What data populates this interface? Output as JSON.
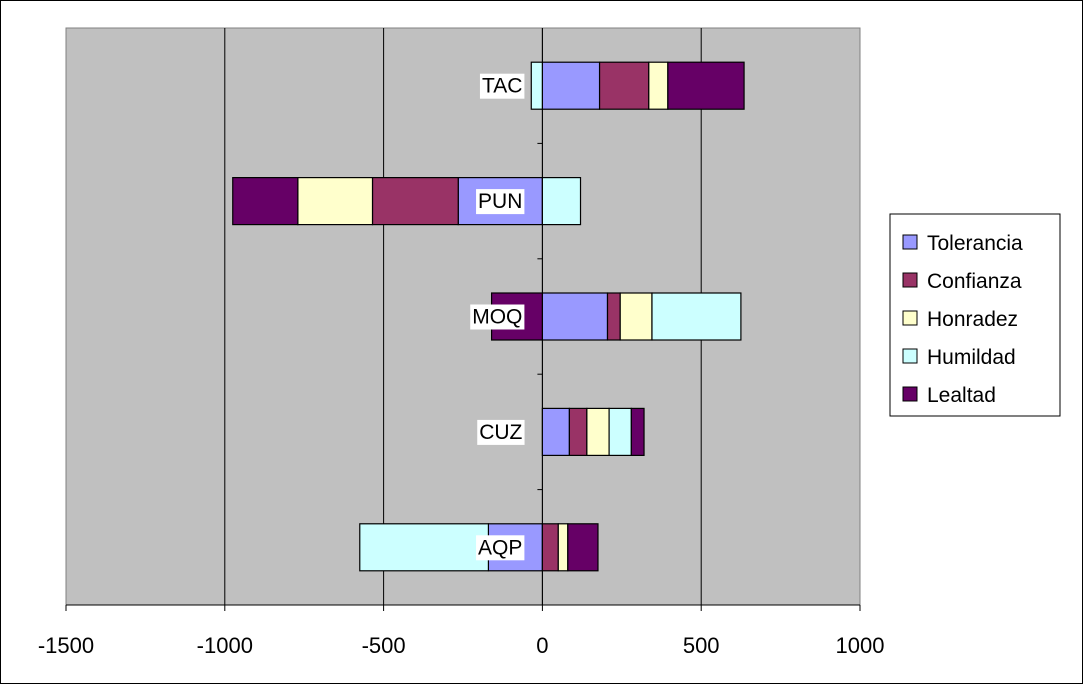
{
  "chart_data": {
    "type": "bar",
    "orientation": "horizontal",
    "stacked": true,
    "categories": [
      "AQP",
      "CUZ",
      "MOQ",
      "PUN",
      "TAC"
    ],
    "series": [
      {
        "name": "Tolerancia",
        "color": "#9999ff",
        "values": [
          -170,
          85,
          205,
          -265,
          180
        ]
      },
      {
        "name": "Confianza",
        "color": "#993366",
        "values": [
          50,
          55,
          40,
          -270,
          155
        ]
      },
      {
        "name": "Honradez",
        "color": "#ffffcc",
        "values": [
          30,
          70,
          100,
          -235,
          60
        ]
      },
      {
        "name": "Humildad",
        "color": "#ccffff",
        "values": [
          -405,
          70,
          280,
          120,
          -35
        ]
      },
      {
        "name": "Lealtad",
        "color": "#660066",
        "values": [
          95,
          40,
          -160,
          -205,
          240
        ]
      }
    ],
    "xlim": [
      -1500,
      1000
    ],
    "x_ticks": [
      "-1500",
      "-1000",
      "-500",
      "0",
      "500",
      "1000"
    ],
    "x_tick_values": [
      -1500,
      -1000,
      -500,
      0,
      500,
      1000
    ],
    "grid": true,
    "plot_background": "#c0c0c0",
    "legend_position": "right"
  }
}
